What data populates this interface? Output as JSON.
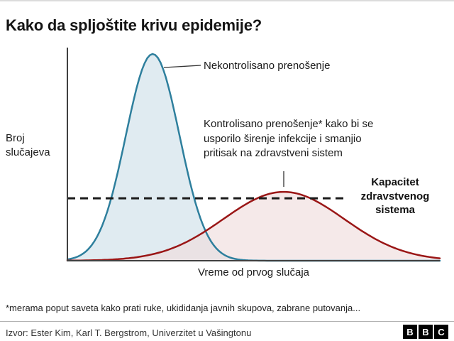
{
  "title": "Kako da spljoštite krivu epidemije?",
  "chart_data": {
    "type": "area",
    "title": "Kako da spljoštite krivu epidemije?",
    "xlabel": "Vreme od prvog slučaja",
    "ylabel": "Broj\nslučajeva",
    "grid": false,
    "axes_have_tick_labels": false,
    "series": [
      {
        "name": "Nekontrolisano prenošenje",
        "shape": "gaussian",
        "peak_x_fraction": 0.229,
        "peak_height_fraction": 0.97,
        "sigma_fraction": 0.072,
        "stroke": "#2e7f9d",
        "fill": "#cfe0ea"
      },
      {
        "name": "Kontrolisano prenošenje",
        "shape": "gaussian",
        "peak_x_fraction": 0.581,
        "peak_height_fraction": 0.323,
        "sigma_fraction": 0.162,
        "stroke": "#9a1616",
        "fill": "#f0dddd"
      }
    ],
    "capacity_line": {
      "label": "Kapacitet\nzdravstvenog\nsistema",
      "y_fraction": 0.293,
      "x_end_fraction": 0.747,
      "style": "dashed",
      "color": "#1a1a1a"
    },
    "annotations": {
      "uncontrolled": "Nekontrolisano prenošenje",
      "controlled": "Kontrolisano prenošenje* kako bi se\nusporilo širenje infekcije i smanjio\npritisak na zdravstveni sistem"
    }
  },
  "footnote": "*merama poput saveta kako prati ruke, ukididanja javnih skupova, zabrane putovanja...",
  "source": "Izvor: Ester Kim, Karl T. Bergstrom, Univerzitet u Vašingtonu",
  "bbc_logo": [
    "B",
    "B",
    "C"
  ]
}
